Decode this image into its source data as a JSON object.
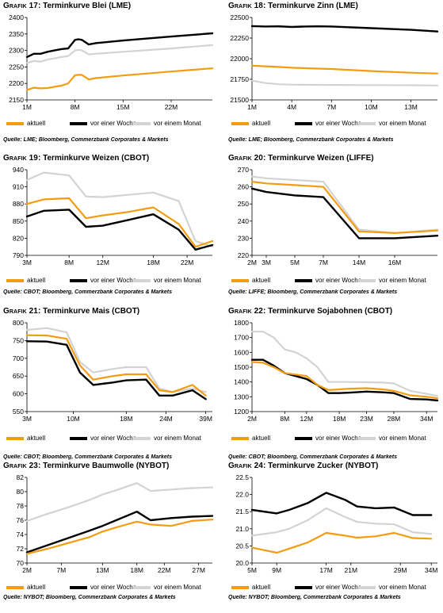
{
  "colors": {
    "aktuell": "#f39c12",
    "vor_einer_woche": "#000000",
    "vor_einem_monat": "#d3d3d3"
  },
  "chart_data": [
    {
      "type": "line",
      "grafik": "Grafik 17",
      "title": ": Terminkurve Blei (LME)",
      "x_ticks": [
        "1M",
        "8M",
        "15M",
        "22M"
      ],
      "tick_positions": [
        1,
        8,
        15,
        22
      ],
      "xlim": [
        1,
        28
      ],
      "ylim": [
        2150,
        2400
      ],
      "y_ticks": [
        2150,
        2200,
        2250,
        2300,
        2350,
        2400
      ],
      "source": "Quelle: LME; Bloomberg, Commerzbank Corporates & Markets",
      "series": [
        {
          "name": "aktuell",
          "x": [
            1,
            2,
            3,
            4,
            5,
            6,
            7,
            8,
            8.5,
            9,
            10,
            11,
            15,
            22,
            28
          ],
          "y": [
            2180,
            2187,
            2185,
            2186,
            2190,
            2193,
            2200,
            2225,
            2226,
            2226,
            2212,
            2216,
            2224,
            2236,
            2246
          ]
        },
        {
          "name": "vor einer Woche",
          "x": [
            1,
            2,
            3,
            4,
            5,
            6,
            7,
            8,
            8.5,
            9,
            10,
            11,
            15,
            22,
            28
          ],
          "y": [
            2280,
            2290,
            2290,
            2296,
            2300,
            2304,
            2306,
            2332,
            2334,
            2332,
            2318,
            2322,
            2330,
            2342,
            2352
          ]
        },
        {
          "name": "vor einem Monat",
          "x": [
            1,
            2,
            3,
            4,
            5,
            6,
            7,
            8,
            8.5,
            9,
            10,
            11,
            15,
            22,
            28
          ],
          "y": [
            2262,
            2268,
            2266,
            2272,
            2276,
            2280,
            2283,
            2300,
            2302,
            2300,
            2288,
            2290,
            2296,
            2306,
            2316
          ]
        }
      ]
    },
    {
      "type": "line",
      "grafik": "Grafik 18",
      "title": ": Terminkurve Zinn (LME)",
      "x_ticks": [
        "1M",
        "4M",
        "7M",
        "10M",
        "13M"
      ],
      "tick_positions": [
        1,
        4,
        7,
        10,
        13
      ],
      "xlim": [
        1,
        15
      ],
      "ylim": [
        21500,
        22500
      ],
      "y_ticks": [
        21500,
        21750,
        22000,
        22250,
        22500
      ],
      "source": "Quelle: LME; Bloomberg, Commerzbank Corporates & Markets",
      "series": [
        {
          "name": "aktuell",
          "x": [
            1,
            2,
            3,
            4,
            6,
            7,
            10,
            13,
            15
          ],
          "y": [
            21915,
            21908,
            21900,
            21890,
            21880,
            21875,
            21850,
            21830,
            21820
          ]
        },
        {
          "name": "vor einer Woche",
          "x": [
            1,
            2,
            3,
            4,
            5,
            6,
            7,
            10,
            13,
            15
          ],
          "y": [
            22395,
            22390,
            22392,
            22385,
            22390,
            22392,
            22390,
            22370,
            22350,
            22330
          ]
        },
        {
          "name": "vor einem Monat",
          "x": [
            1,
            2,
            3,
            4,
            7,
            10,
            13,
            15
          ],
          "y": [
            21735,
            21705,
            21690,
            21685,
            21682,
            21680,
            21678,
            21675
          ]
        }
      ]
    },
    {
      "type": "line",
      "grafik": "Grafik 19",
      "title": ": Terminkurve Weizen (CBOT)",
      "x_ticks": [
        "3M",
        "8M",
        "12M",
        "18M",
        "22M"
      ],
      "tick_positions": [
        3,
        8,
        12,
        18,
        22
      ],
      "xlim": [
        3,
        25
      ],
      "ylim": [
        790,
        940
      ],
      "y_ticks": [
        790,
        820,
        850,
        880,
        910,
        940
      ],
      "source": "Quelle: CBOT; Bloomberg, Commerzbank Corporates & Markets",
      "series": [
        {
          "name": "aktuell",
          "x": [
            3,
            5,
            8,
            10,
            12,
            15,
            18,
            21,
            23,
            25
          ],
          "y": [
            880,
            888,
            890,
            855,
            860,
            866,
            874,
            845,
            805,
            815
          ]
        },
        {
          "name": "vor einer Woche",
          "x": [
            3,
            5,
            8,
            10,
            12,
            15,
            18,
            21,
            23,
            25
          ],
          "y": [
            858,
            868,
            870,
            840,
            842,
            852,
            862,
            835,
            800,
            808
          ]
        },
        {
          "name": "vor einem Monat",
          "x": [
            3,
            5,
            8,
            10,
            12,
            15,
            18,
            21,
            23,
            25
          ],
          "y": [
            922,
            935,
            930,
            893,
            892,
            896,
            900,
            885,
            815,
            805
          ]
        }
      ]
    },
    {
      "type": "line",
      "grafik": "Grafik 20",
      "title": ": Terminkurve Weizen (LIFFE)",
      "x_ticks": [
        "2M",
        "3M",
        "5M",
        "7M",
        "14M",
        "16M"
      ],
      "tick_positions": [
        2,
        3,
        5,
        7,
        9.5,
        12
      ],
      "xlim": [
        2,
        15
      ],
      "ylim": [
        220,
        270
      ],
      "y_ticks": [
        220,
        230,
        240,
        250,
        260,
        270
      ],
      "source": "Quelle: LIFFE; Bloomberg, Commerzbank Corporates & Markets",
      "series": [
        {
          "name": "aktuell",
          "x": [
            2,
            3,
            5,
            7,
            9.5,
            12,
            15
          ],
          "y": [
            263,
            262,
            261,
            260,
            234,
            233,
            234.5
          ]
        },
        {
          "name": "vor einer Woche",
          "x": [
            2,
            3,
            5,
            7,
            9.5,
            12,
            15
          ],
          "y": [
            259,
            257,
            255,
            254,
            230,
            230,
            231.5
          ]
        },
        {
          "name": "vor einem Monat",
          "x": [
            2,
            3,
            5,
            7,
            9.5,
            12,
            15
          ],
          "y": [
            266,
            265,
            264,
            263,
            235,
            233,
            235
          ]
        }
      ]
    },
    {
      "type": "line",
      "grafik": "Grafik 21",
      "title": ": Terminkurve Mais (CBOT)",
      "x_ticks": [
        "3M",
        "10M",
        "18M",
        "24M",
        "39M"
      ],
      "tick_positions": [
        3,
        10,
        18,
        24,
        30
      ],
      "xlim": [
        3,
        31
      ],
      "ylim": [
        550,
        800
      ],
      "y_ticks": [
        550,
        600,
        650,
        700,
        750,
        800
      ],
      "source": "Quelle: CBOT; Bloomberg, Commerzbank Corporates & Markets",
      "series": [
        {
          "name": "aktuell",
          "x": [
            3,
            6,
            9,
            11,
            13,
            16,
            18,
            21,
            23,
            25,
            28,
            30
          ],
          "y": [
            765,
            764,
            755,
            680,
            640,
            650,
            655,
            655,
            610,
            605,
            625,
            595
          ]
        },
        {
          "name": "vor einer Woche",
          "x": [
            3,
            6,
            9,
            11,
            13,
            16,
            18,
            21,
            23,
            25,
            28,
            30
          ],
          "y": [
            748,
            747,
            738,
            660,
            625,
            632,
            638,
            640,
            595,
            595,
            610,
            585
          ]
        },
        {
          "name": "vor einem Monat",
          "x": [
            3,
            6,
            9,
            11,
            13,
            16,
            18,
            21,
            23,
            25,
            28,
            30
          ],
          "y": [
            780,
            785,
            773,
            690,
            660,
            670,
            675,
            675,
            615,
            605,
            615,
            605
          ]
        }
      ]
    },
    {
      "type": "line",
      "grafik": "Grafik 22",
      "title": ": Terminkurve Sojabohnen (CBOT)",
      "x_ticks": [
        "2M",
        "8M",
        "12M",
        "18M",
        "23M",
        "28M",
        "34M"
      ],
      "tick_positions": [
        2,
        8,
        12,
        18,
        23,
        28,
        34
      ],
      "xlim": [
        2,
        36
      ],
      "ylim": [
        1200,
        1800
      ],
      "y_ticks": [
        1200,
        1300,
        1400,
        1500,
        1600,
        1700,
        1800
      ],
      "source": "Quelle: CBOT; Bloomberg, Commerzbank Corporates & Markets",
      "series": [
        {
          "name": "aktuell",
          "x": [
            2,
            4,
            6,
            8,
            10,
            12,
            14,
            16,
            18,
            20,
            23,
            26,
            28,
            31,
            34,
            36
          ],
          "y": [
            1535,
            1530,
            1500,
            1460,
            1450,
            1440,
            1380,
            1345,
            1350,
            1355,
            1358,
            1350,
            1340,
            1310,
            1300,
            1290
          ]
        },
        {
          "name": "vor einer Woche",
          "x": [
            2,
            4,
            6,
            8,
            10,
            12,
            14,
            16,
            18,
            20,
            23,
            26,
            28,
            31,
            34,
            36
          ],
          "y": [
            1550,
            1550,
            1510,
            1460,
            1440,
            1420,
            1380,
            1325,
            1325,
            1328,
            1335,
            1330,
            1325,
            1285,
            1282,
            1275
          ]
        },
        {
          "name": "vor einem Monat",
          "x": [
            2,
            4,
            6,
            8,
            10,
            12,
            14,
            16,
            18,
            20,
            23,
            26,
            28,
            31,
            34,
            36
          ],
          "y": [
            1740,
            1740,
            1700,
            1620,
            1600,
            1560,
            1500,
            1400,
            1400,
            1400,
            1398,
            1396,
            1390,
            1340,
            1320,
            1305
          ]
        }
      ]
    },
    {
      "type": "line",
      "grafik": "Grafik 23",
      "title": ": Terminkurve Baumwolle (NYBOT)",
      "x_ticks": [
        "2M",
        "7M",
        "13M",
        "18M",
        "22M",
        "27M"
      ],
      "tick_positions": [
        2,
        7,
        13,
        18,
        22,
        27
      ],
      "xlim": [
        2,
        29
      ],
      "ylim": [
        70,
        82
      ],
      "y_ticks": [
        70,
        72,
        74,
        76,
        78,
        80,
        82
      ],
      "source": "Quelle: NYBOT; Bloomberg, Commerzbank Corporates & Markets",
      "series": [
        {
          "name": "aktuell",
          "x": [
            2,
            5,
            8,
            11,
            13,
            15,
            18,
            20,
            23,
            26,
            29
          ],
          "y": [
            71.3,
            72.0,
            72.8,
            73.6,
            74.4,
            75.0,
            75.8,
            75.4,
            75.2,
            75.9,
            76.1
          ]
        },
        {
          "name": "vor einer Woche",
          "x": [
            2,
            5,
            8,
            11,
            13,
            15,
            18,
            20,
            23,
            26,
            29
          ],
          "y": [
            71.5,
            72.5,
            73.5,
            74.5,
            75.2,
            76.0,
            77.2,
            76.0,
            76.3,
            76.5,
            76.6
          ]
        },
        {
          "name": "vor einem Monat",
          "x": [
            2,
            5,
            8,
            11,
            13,
            15,
            18,
            20,
            23,
            26,
            29
          ],
          "y": [
            75.9,
            76.9,
            77.8,
            78.8,
            79.6,
            80.2,
            81.2,
            80.1,
            80.3,
            80.5,
            80.6
          ]
        }
      ]
    },
    {
      "type": "line",
      "grafik": "Grafik 24",
      "title": ": Terminkurve Zucker (NYBOT)",
      "x_ticks": [
        "5M",
        "9M",
        "17M",
        "21M",
        "29M",
        "34M"
      ],
      "tick_positions": [
        5,
        9,
        17,
        21,
        29,
        34
      ],
      "xlim": [
        5,
        35
      ],
      "ylim": [
        20.0,
        22.5
      ],
      "y_ticks": [
        20.0,
        20.5,
        21.0,
        21.5,
        22.0,
        22.5
      ],
      "source": "Quelle: NYBOT; Bloomberg, Commerzbank Corporates & Markets",
      "series": [
        {
          "name": "aktuell",
          "x": [
            5,
            9,
            11,
            14,
            17,
            20,
            22,
            25,
            28,
            31,
            34
          ],
          "y": [
            20.45,
            20.3,
            20.42,
            20.6,
            20.88,
            20.8,
            20.74,
            20.78,
            20.88,
            20.73,
            20.71
          ]
        },
        {
          "name": "vor einer Woche",
          "x": [
            5,
            9,
            11,
            14,
            17,
            20,
            22,
            25,
            28,
            31,
            34
          ],
          "y": [
            21.55,
            21.45,
            21.55,
            21.75,
            22.05,
            21.85,
            21.65,
            21.6,
            21.62,
            21.4,
            21.4
          ]
        },
        {
          "name": "vor einem Monat",
          "x": [
            5,
            9,
            11,
            14,
            17,
            20,
            22,
            25,
            28,
            31,
            34
          ],
          "y": [
            20.8,
            20.9,
            21.0,
            21.25,
            21.6,
            21.35,
            21.2,
            21.15,
            21.13,
            20.9,
            20.85
          ]
        }
      ]
    }
  ]
}
